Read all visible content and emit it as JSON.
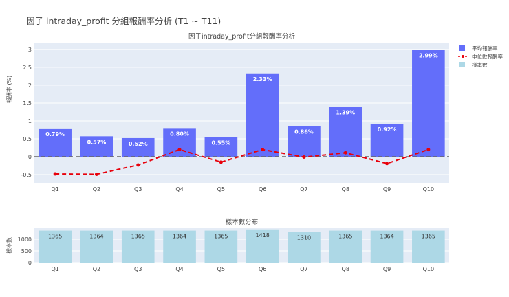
{
  "title": "因子 intraday_profit 分組報酬率分析 (T1 ~ T11)",
  "colors": {
    "mean_bar": "#636efa",
    "median_line": "#e8000b",
    "count_bar": "#add8e6",
    "plot_bg": "#e5ecf6",
    "zero_line": "#666666"
  },
  "legend": {
    "position": "top-right",
    "items": [
      {
        "label": "平均報酬率",
        "icon": "square-icon"
      },
      {
        "label": "中位數報酬率",
        "icon": "dashed-line-marker-icon"
      },
      {
        "label": "樣本數",
        "icon": "square-icon"
      }
    ]
  },
  "chart_data": [
    {
      "type": "bar",
      "title": "因子intraday_profit分組報酬率分析",
      "xlabel": "",
      "ylabel": "報酬率 (%)",
      "categories": [
        "Q1",
        "Q2",
        "Q3",
        "Q4",
        "Q5",
        "Q6",
        "Q7",
        "Q8",
        "Q9",
        "Q10"
      ],
      "ylim": [
        -0.73,
        3.19
      ],
      "yticks": [
        -0.5,
        0,
        0.5,
        1,
        1.5,
        2,
        2.5,
        3
      ],
      "grid": true,
      "series": [
        {
          "name": "平均報酬率",
          "type": "bar",
          "values": [
            0.79,
            0.57,
            0.52,
            0.8,
            0.55,
            2.33,
            0.86,
            1.39,
            0.92,
            2.99
          ],
          "labels": [
            "0.79%",
            "0.57%",
            "0.52%",
            "0.80%",
            "0.55%",
            "2.33%",
            "0.86%",
            "1.39%",
            "0.92%",
            "2.99%"
          ]
        },
        {
          "name": "中位數報酬率",
          "type": "line",
          "values": [
            -0.48,
            -0.49,
            -0.23,
            0.2,
            -0.15,
            0.2,
            -0.01,
            0.11,
            -0.19,
            0.2
          ]
        }
      ]
    },
    {
      "type": "bar",
      "title": "樣本數分布",
      "xlabel": "",
      "ylabel": "樣本數",
      "categories": [
        "Q1",
        "Q2",
        "Q3",
        "Q4",
        "Q5",
        "Q6",
        "Q7",
        "Q8",
        "Q9",
        "Q10"
      ],
      "ylim": [
        0,
        1470
      ],
      "yticks": [
        0,
        500,
        1000
      ],
      "grid": true,
      "series": [
        {
          "name": "樣本數",
          "values": [
            1365,
            1364,
            1365,
            1364,
            1365,
            1418,
            1310,
            1365,
            1364,
            1365
          ]
        }
      ]
    }
  ]
}
